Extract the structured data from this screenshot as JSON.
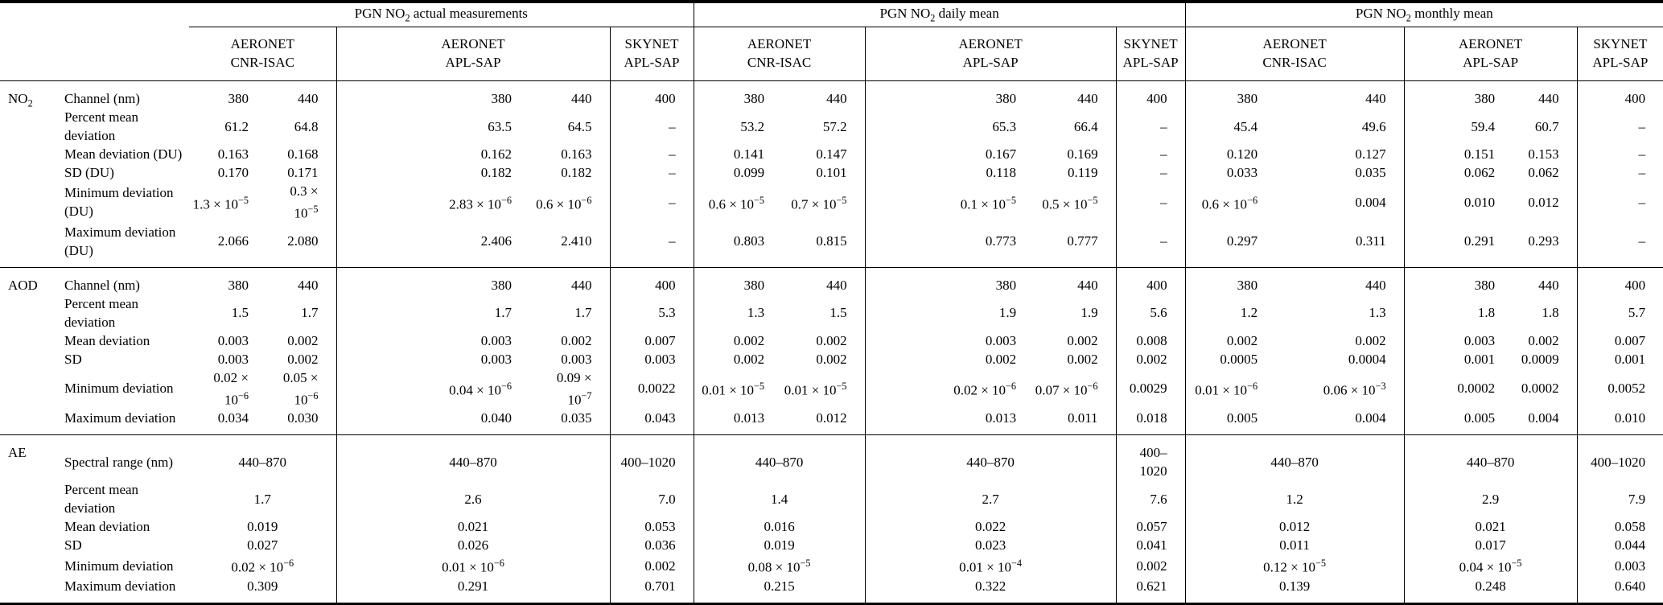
{
  "table": {
    "col_groups": [
      {
        "label": "PGN NO_2 actual measurements"
      },
      {
        "label": "PGN NO_2 daily mean"
      },
      {
        "label": "PGN NO_2 monthly mean"
      }
    ],
    "instruments": [
      {
        "line1": "AERONET",
        "line2": "CNR-ISAC"
      },
      {
        "line1": "AERONET",
        "line2": "APL-SAP"
      },
      {
        "line1": "SKYNET",
        "line2": "APL-SAP"
      }
    ],
    "sections": [
      {
        "group": "NO_2",
        "merged": false,
        "rows": [
          {
            "label": "Channel (nm)",
            "values": [
              "380",
              "440",
              "380",
              "440",
              "400",
              "380",
              "440",
              "380",
              "440",
              "400",
              "380",
              "440",
              "380",
              "440",
              "400"
            ]
          },
          {
            "label": "Percent mean deviation",
            "values": [
              "61.2",
              "64.8",
              "63.5",
              "64.5",
              "–",
              "53.2",
              "57.2",
              "65.3",
              "66.4",
              "–",
              "45.4",
              "49.6",
              "59.4",
              "60.7",
              "–"
            ]
          },
          {
            "label": "Mean deviation (DU)",
            "values": [
              "0.163",
              "0.168",
              "0.162",
              "0.163",
              "–",
              "0.141",
              "0.147",
              "0.167",
              "0.169",
              "–",
              "0.120",
              "0.127",
              "0.151",
              "0.153",
              "–"
            ]
          },
          {
            "label": "SD (DU)",
            "values": [
              "0.170",
              "0.171",
              "0.182",
              "0.182",
              "–",
              "0.099",
              "0.101",
              "0.118",
              "0.119",
              "–",
              "0.033",
              "0.035",
              "0.062",
              "0.062",
              "–"
            ]
          },
          {
            "label": "Minimum deviation (DU)",
            "values": [
              "1.3 × 10^−5",
              "0.3 × 10^−5",
              "2.83 × 10^−6",
              "0.6 × 10^−6",
              "–",
              "0.6 × 10^−5",
              "0.7 × 10^−5",
              "0.1 × 10^−5",
              "0.5 × 10^−5",
              "–",
              "0.6 × 10^−6",
              "0.004",
              "0.010",
              "0.012",
              "–"
            ]
          },
          {
            "label": "Maximum deviation (DU)",
            "values": [
              "2.066",
              "2.080",
              "2.406",
              "2.410",
              "–",
              "0.803",
              "0.815",
              "0.773",
              "0.777",
              "–",
              "0.297",
              "0.311",
              "0.291",
              "0.293",
              "–"
            ]
          }
        ]
      },
      {
        "group": "AOD",
        "merged": false,
        "rows": [
          {
            "label": "Channel (nm)",
            "values": [
              "380",
              "440",
              "380",
              "440",
              "400",
              "380",
              "440",
              "380",
              "440",
              "400",
              "380",
              "440",
              "380",
              "440",
              "400"
            ]
          },
          {
            "label": "Percent mean deviation",
            "values": [
              "1.5",
              "1.7",
              "1.7",
              "1.7",
              "5.3",
              "1.3",
              "1.5",
              "1.9",
              "1.9",
              "5.6",
              "1.2",
              "1.3",
              "1.8",
              "1.8",
              "5.7"
            ]
          },
          {
            "label": "Mean deviation",
            "values": [
              "0.003",
              "0.002",
              "0.003",
              "0.002",
              "0.007",
              "0.002",
              "0.002",
              "0.003",
              "0.002",
              "0.008",
              "0.002",
              "0.002",
              "0.003",
              "0.002",
              "0.007"
            ]
          },
          {
            "label": "SD",
            "values": [
              "0.003",
              "0.002",
              "0.003",
              "0.003",
              "0.003",
              "0.002",
              "0.002",
              "0.002",
              "0.002",
              "0.002",
              "0.0005",
              "0.0004",
              "0.001",
              "0.0009",
              "0.001"
            ]
          },
          {
            "label": "Minimum deviation",
            "values": [
              "0.02 × 10^−6",
              "0.05 × 10^−6",
              "0.04 × 10^−6",
              "0.09 × 10^−7",
              "0.0022",
              "0.01 × 10^−5",
              "0.01 × 10^−5",
              "0.02 × 10^−6",
              "0.07 × 10^−6",
              "0.0029",
              "0.01 × 10^−6",
              "0.06 × 10^−3",
              "0.0002",
              "0.0002",
              "0.0052"
            ]
          },
          {
            "label": "Maximum deviation",
            "values": [
              "0.034",
              "0.030",
              "0.040",
              "0.035",
              "0.043",
              "0.013",
              "0.012",
              "0.013",
              "0.011",
              "0.018",
              "0.005",
              "0.004",
              "0.005",
              "0.004",
              "0.010"
            ]
          }
        ]
      },
      {
        "group": "AE",
        "merged": true,
        "rows": [
          {
            "label": "Spectral range (nm)",
            "values": [
              "440–870",
              "440–870",
              "400–1020",
              "440–870",
              "440–870",
              "400–1020",
              "440–870",
              "440–870",
              "400–1020"
            ]
          },
          {
            "label": "Percent mean deviation",
            "values": [
              "1.7",
              "2.6",
              "7.0",
              "1.4",
              "2.7",
              "7.6",
              "1.2",
              "2.9",
              "7.9"
            ]
          },
          {
            "label": "Mean deviation",
            "values": [
              "0.019",
              "0.021",
              "0.053",
              "0.016",
              "0.022",
              "0.057",
              "0.012",
              "0.021",
              "0.058"
            ]
          },
          {
            "label": "SD",
            "values": [
              "0.027",
              "0.026",
              "0.036",
              "0.019",
              "0.023",
              "0.041",
              "0.011",
              "0.017",
              "0.044"
            ]
          },
          {
            "label": "Minimum deviation",
            "values": [
              "0.02 × 10^−6",
              "0.01 × 10^−6",
              "0.002",
              "0.08 × 10^−5",
              "0.01 × 10^−4",
              "0.002",
              "0.12 × 10^−5",
              "0.04 × 10^−5",
              "0.003"
            ]
          },
          {
            "label": "Maximum deviation",
            "values": [
              "0.309",
              "0.291",
              "0.701",
              "0.215",
              "0.322",
              "0.621",
              "0.139",
              "0.248",
              "0.640"
            ]
          }
        ]
      }
    ]
  }
}
